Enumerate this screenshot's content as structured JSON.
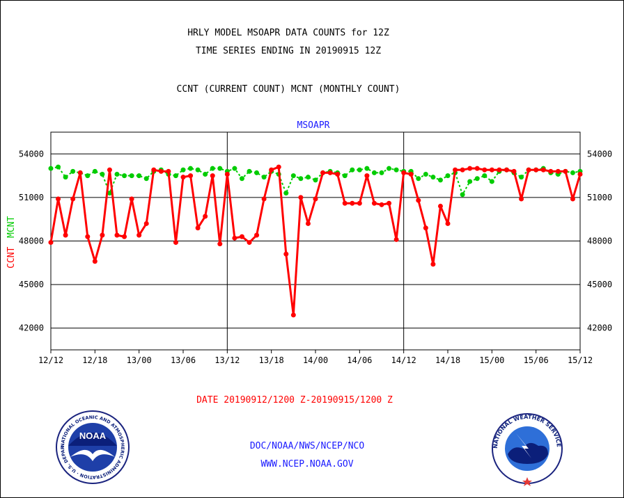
{
  "header": {
    "title_line1": "HRLY MODEL MSOAPR DATA COUNTS for 12Z",
    "title_line2": "TIME SERIES ENDING IN 20190915 12Z",
    "subtitle": "CCNT (CURRENT COUNT) MCNT (MONTHLY COUNT)"
  },
  "footer": {
    "date_range": "DATE 20190912/1200 Z-20190915/1200 Z",
    "org": "DOC/NOAA/NWS/NCEP/NCO",
    "url": "WWW.NCEP.NOAA.GOV"
  },
  "logos": {
    "noaa_text": "NOAA",
    "noaa_ring": "NATIONAL OCEANIC AND ATMOSPHERIC ADMINISTRATION · U.S. DEPARTMENT OF COMMERCE ·",
    "nws_ring": "NATIONAL WEATHER SERVICE"
  },
  "colors": {
    "ccnt": "#ff0000",
    "mcnt": "#00cc00",
    "blue_text": "#1a1aff"
  },
  "chart_data": {
    "type": "line",
    "title": "MSOAPR",
    "ylabel_left_1": "CCNT",
    "ylabel_left_2": "MCNT",
    "ylim": [
      40500,
      55500
    ],
    "yticks": [
      42000,
      45000,
      48000,
      51000,
      54000
    ],
    "ytick_labels": [
      "42000",
      "45000",
      "48000",
      "51000",
      "54000"
    ],
    "xlim": [
      0,
      72
    ],
    "xticks": [
      0,
      6,
      12,
      18,
      24,
      30,
      36,
      42,
      48,
      54,
      60,
      66,
      72
    ],
    "xtick_labels": [
      "12/12",
      "12/18",
      "13/00",
      "13/06",
      "13/12",
      "13/18",
      "14/00",
      "14/06",
      "14/12",
      "14/18",
      "15/00",
      "15/06",
      "15/12"
    ],
    "day_dividers": [
      24,
      48
    ],
    "grid": true,
    "series": [
      {
        "name": "CCNT",
        "color": "#ff0000",
        "x": [
          0,
          1,
          2,
          3,
          4,
          5,
          6,
          7,
          8,
          9,
          10,
          11,
          12,
          13,
          14,
          15,
          16,
          17,
          18,
          19,
          20,
          21,
          22,
          23,
          24,
          25,
          26,
          27,
          28,
          29,
          30,
          31,
          32,
          33,
          34,
          35,
          36,
          37,
          38,
          39,
          40,
          41,
          42,
          43,
          44,
          45,
          46,
          47,
          48,
          49,
          50,
          51,
          52,
          53,
          54,
          55,
          56,
          57,
          58,
          59,
          60,
          61,
          62,
          63,
          64,
          65,
          66,
          67,
          68,
          69,
          70,
          71,
          72
        ],
        "values": [
          47900,
          50900,
          48400,
          50900,
          52700,
          48300,
          46600,
          48400,
          52900,
          48400,
          48300,
          50900,
          48400,
          49200,
          52900,
          52800,
          52800,
          47900,
          52400,
          52500,
          48900,
          49700,
          52500,
          47800,
          52600,
          48200,
          48300,
          47900,
          48400,
          50900,
          52900,
          53100,
          47100,
          42900,
          51000,
          49200,
          50900,
          52700,
          52700,
          52600,
          50600,
          50600,
          50600,
          52500,
          50600,
          50500,
          50600,
          48100,
          52700,
          52600,
          50800,
          48900,
          46400,
          50400,
          49200,
          52900,
          52900,
          53000,
          53000,
          52900,
          52900,
          52900,
          52900,
          52800,
          50900,
          52900,
          52900,
          52900,
          52800,
          52800,
          52800,
          50900,
          52600
        ]
      },
      {
        "name": "MCNT",
        "color": "#00cc00",
        "x": [
          0,
          1,
          2,
          3,
          4,
          5,
          6,
          7,
          8,
          9,
          10,
          11,
          12,
          13,
          14,
          15,
          16,
          17,
          18,
          19,
          20,
          21,
          22,
          23,
          24,
          25,
          26,
          27,
          28,
          29,
          30,
          31,
          32,
          33,
          34,
          35,
          36,
          37,
          38,
          39,
          40,
          41,
          42,
          43,
          44,
          45,
          46,
          47,
          48,
          49,
          50,
          51,
          52,
          53,
          54,
          55,
          56,
          57,
          58,
          59,
          60,
          61,
          62,
          63,
          64,
          65,
          66,
          67,
          68,
          69,
          70,
          71,
          72
        ],
        "values": [
          53000,
          53100,
          52400,
          52800,
          52700,
          52500,
          52800,
          52600,
          51300,
          52600,
          52500,
          52500,
          52500,
          52300,
          52800,
          52900,
          52600,
          52500,
          52900,
          53000,
          52900,
          52600,
          53000,
          53000,
          52800,
          53000,
          52300,
          52800,
          52700,
          52400,
          52800,
          52600,
          51300,
          52500,
          52300,
          52400,
          52200,
          52700,
          52800,
          52700,
          52500,
          52900,
          52900,
          53000,
          52700,
          52700,
          53000,
          52900,
          52800,
          52800,
          52300,
          52600,
          52400,
          52200,
          52500,
          52700,
          51200,
          52100,
          52300,
          52500,
          52100,
          52800,
          52900,
          52700,
          52400,
          52900,
          52900,
          53000,
          52700,
          52600,
          52800,
          52700,
          52800
        ]
      }
    ]
  }
}
